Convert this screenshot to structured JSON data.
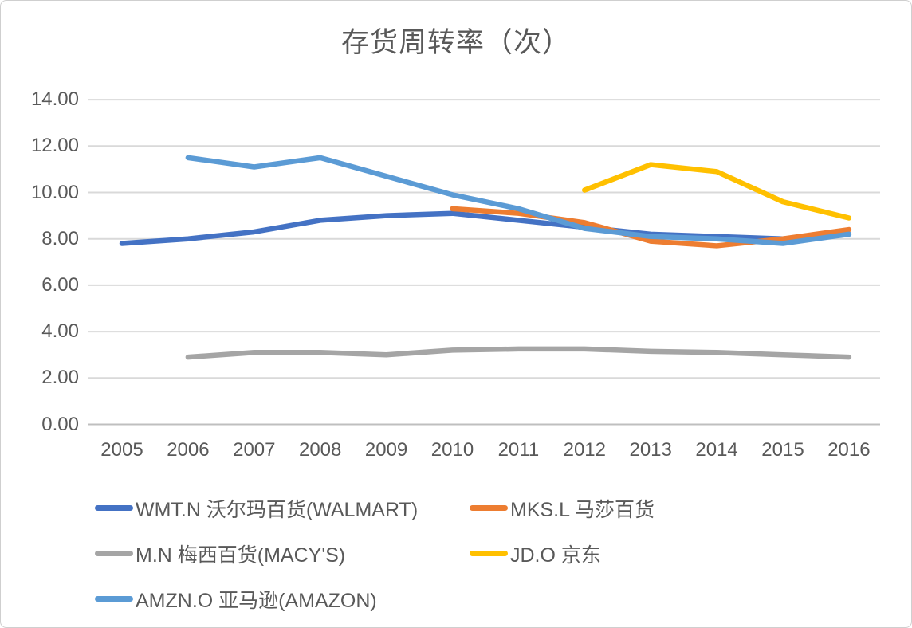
{
  "title": "存货周转率（次）",
  "colors": {
    "gridline": "#d9d9d9",
    "axis_line": "#bfbfbf",
    "text": "#595959"
  },
  "chart_data": {
    "type": "line",
    "title": "存货周转率（次）",
    "x": [
      2005,
      2006,
      2007,
      2008,
      2009,
      2010,
      2011,
      2012,
      2013,
      2014,
      2015,
      2016
    ],
    "ylim": [
      0,
      14
    ],
    "ytick_labels": [
      "0.00",
      "2.00",
      "4.00",
      "6.00",
      "8.00",
      "10.00",
      "12.00",
      "14.00"
    ],
    "grid": true,
    "legend_position": "bottom",
    "series": [
      {
        "name": "WMT.N 沃尔玛百货(WALMART)",
        "color": "#4472c4",
        "values": [
          7.8,
          8.0,
          8.3,
          8.8,
          9.0,
          9.1,
          8.8,
          8.5,
          8.2,
          8.1,
          8.0,
          8.2
        ]
      },
      {
        "name": "MKS.L 马莎百货",
        "color": "#ed7d31",
        "values": [
          null,
          null,
          null,
          null,
          null,
          9.3,
          9.1,
          8.7,
          7.9,
          7.7,
          8.0,
          8.4
        ]
      },
      {
        "name": "M.N 梅西百货(MACY'S)",
        "color": "#a5a5a5",
        "values": [
          null,
          2.9,
          3.1,
          3.1,
          3.0,
          3.2,
          3.25,
          3.25,
          3.15,
          3.1,
          3.0,
          2.9
        ]
      },
      {
        "name": "JD.O 京东",
        "color": "#ffc000",
        "values": [
          null,
          null,
          null,
          null,
          null,
          null,
          null,
          10.1,
          11.2,
          10.9,
          9.6,
          8.9
        ]
      },
      {
        "name": "AMZN.O 亚马逊(AMAZON)",
        "color": "#5b9bd5",
        "values": [
          null,
          11.5,
          11.1,
          11.5,
          10.7,
          9.9,
          9.3,
          8.45,
          8.1,
          8.0,
          7.8,
          8.2
        ]
      }
    ]
  }
}
